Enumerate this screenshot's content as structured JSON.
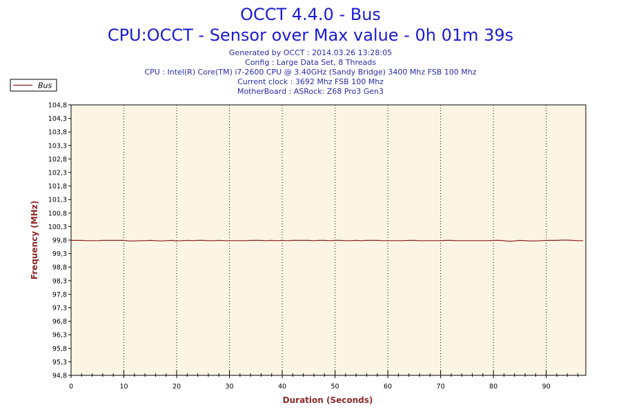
{
  "header": {
    "title": "OCCT 4.4.0 - Bus",
    "subtitle": "CPU:OCCT - Sensor over Max value - 0h 01m 39s",
    "info": [
      "Generated by OCCT : 2014.03.26 13:28:05",
      "Config : Large Data Set, 8 Threads",
      "CPU : Intel(R) Core(TM) i7-2600 CPU @ 3.40GHz (Sandy Bridge) 3400 Mhz FSB 100 Mhz",
      "Current clock : 3692 Mhz FSB 100 Mhz",
      "MotherBoard : ASRock: Z68 Pro3 Gen3"
    ]
  },
  "legend": {
    "label": "Bus"
  },
  "colors": {
    "title": "#1a1ad6",
    "info": "#2a2aa8",
    "plot_background": "#fdf5e4",
    "series": "#8b1a1a",
    "axis_label": "#8b2a2a"
  },
  "chart_data": {
    "type": "line",
    "title": "OCCT 4.4.0 - Bus",
    "xlabel": "Duration (Seconds)",
    "ylabel": "Frequency (MHz)",
    "xlim": [
      0,
      97.5
    ],
    "ylim": [
      94.8,
      104.8
    ],
    "xticks": [
      0,
      10,
      20,
      30,
      40,
      50,
      60,
      70,
      80,
      90
    ],
    "xtick_labels": [
      "0",
      "10",
      "20",
      "30",
      "40",
      "50",
      "60",
      "70",
      "80",
      "90"
    ],
    "yticks": [
      94.8,
      95.3,
      95.8,
      96.3,
      96.8,
      97.3,
      97.8,
      98.3,
      98.8,
      99.3,
      99.8,
      100.3,
      100.8,
      101.3,
      101.8,
      102.3,
      102.8,
      103.3,
      103.8,
      104.3,
      104.8
    ],
    "ytick_labels": [
      "94,8",
      "95,3",
      "95,8",
      "96,3",
      "96,8",
      "97,3",
      "97,8",
      "98,3",
      "98,8",
      "99,3",
      "99,8",
      "100,3",
      "100,8",
      "101,3",
      "101,8",
      "102,3",
      "102,8",
      "103,3",
      "103,8",
      "104,3",
      "104,8"
    ],
    "grid": {
      "x": true,
      "y": false,
      "style": "dotted"
    },
    "legend_position": "top-left",
    "series": [
      {
        "name": "Bus",
        "color": "#8b1a1a",
        "x": [
          0,
          1,
          2,
          3,
          4,
          5,
          6,
          7,
          8,
          9,
          10,
          11,
          12,
          13,
          14,
          15,
          16,
          17,
          18,
          19,
          20,
          21,
          22,
          23,
          24,
          25,
          26,
          27,
          28,
          29,
          30,
          31,
          32,
          33,
          34,
          35,
          36,
          37,
          38,
          39,
          40,
          41,
          42,
          43,
          44,
          45,
          46,
          47,
          48,
          49,
          50,
          51,
          52,
          53,
          54,
          55,
          56,
          57,
          58,
          59,
          60,
          61,
          62,
          63,
          64,
          65,
          66,
          67,
          68,
          69,
          70,
          71,
          72,
          73,
          74,
          75,
          76,
          77,
          78,
          79,
          80,
          81,
          82,
          83,
          84,
          85,
          86,
          87,
          88,
          89,
          90,
          91,
          92,
          93,
          94,
          95,
          96,
          97
        ],
        "y": [
          99.79,
          99.79,
          99.79,
          99.78,
          99.78,
          99.78,
          99.79,
          99.79,
          99.79,
          99.79,
          99.79,
          99.77,
          99.77,
          99.78,
          99.78,
          99.79,
          99.78,
          99.77,
          99.78,
          99.79,
          99.77,
          99.78,
          99.79,
          99.78,
          99.79,
          99.79,
          99.78,
          99.78,
          99.79,
          99.78,
          99.78,
          99.78,
          99.78,
          99.78,
          99.79,
          99.79,
          99.79,
          99.78,
          99.79,
          99.78,
          99.79,
          99.78,
          99.79,
          99.79,
          99.79,
          99.79,
          99.78,
          99.79,
          99.79,
          99.78,
          99.79,
          99.79,
          99.78,
          99.78,
          99.79,
          99.78,
          99.79,
          99.79,
          99.79,
          99.78,
          99.78,
          99.78,
          99.78,
          99.78,
          99.79,
          99.79,
          99.78,
          99.78,
          99.78,
          99.78,
          99.78,
          99.79,
          99.79,
          99.78,
          99.78,
          99.78,
          99.78,
          99.78,
          99.78,
          99.78,
          99.79,
          99.79,
          99.78,
          99.76,
          99.77,
          99.79,
          99.78,
          99.77,
          99.77,
          99.78,
          99.79,
          99.79,
          99.79,
          99.8,
          99.8,
          99.79,
          99.78,
          99.78
        ]
      }
    ]
  }
}
